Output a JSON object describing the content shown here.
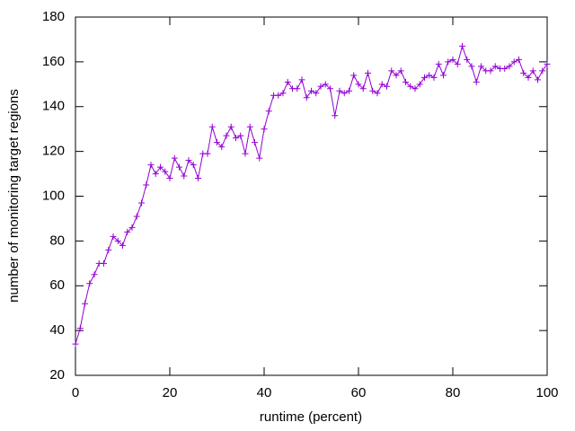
{
  "chart_data": {
    "type": "line",
    "xlabel": "runtime (percent)",
    "ylabel": "number of monitoring target regions",
    "x": [
      0,
      1,
      2,
      3,
      4,
      5,
      6,
      7,
      8,
      9,
      10,
      11,
      12,
      13,
      14,
      15,
      16,
      17,
      18,
      19,
      20,
      21,
      22,
      23,
      24,
      25,
      26,
      27,
      28,
      29,
      30,
      31,
      32,
      33,
      34,
      35,
      36,
      37,
      38,
      39,
      40,
      41,
      42,
      43,
      44,
      45,
      46,
      47,
      48,
      49,
      50,
      51,
      52,
      53,
      54,
      55,
      56,
      57,
      58,
      59,
      60,
      61,
      62,
      63,
      64,
      65,
      66,
      67,
      68,
      69,
      70,
      71,
      72,
      73,
      74,
      75,
      76,
      77,
      78,
      79,
      80,
      81,
      82,
      83,
      84,
      85,
      86,
      87,
      88,
      89,
      90,
      91,
      92,
      93,
      94,
      95,
      96,
      97,
      98,
      99,
      100
    ],
    "series": [
      {
        "color": "#9400d3",
        "values": [
          34,
          41,
          52,
          61,
          65,
          70,
          70,
          76,
          82,
          80,
          78,
          84,
          86,
          91,
          97,
          105,
          114,
          110,
          113,
          111,
          108,
          117,
          113,
          109,
          116,
          114,
          108,
          119,
          119,
          131,
          124,
          122,
          127,
          131,
          126,
          127,
          119,
          131,
          124,
          117,
          130,
          138,
          145,
          145,
          146,
          151,
          148,
          148,
          152,
          144,
          147,
          146,
          149,
          150,
          148,
          136,
          147,
          146,
          147,
          154,
          150,
          148,
          155,
          147,
          146,
          150,
          149,
          156,
          154,
          156,
          151,
          149,
          148,
          150,
          153,
          154,
          153,
          159,
          154,
          160,
          161,
          159,
          167,
          161,
          158,
          151,
          158,
          156,
          156,
          158,
          157,
          157,
          158,
          160,
          161,
          155,
          153,
          156,
          152,
          156,
          159
        ]
      }
    ],
    "xlim": [
      0,
      100
    ],
    "xticks": [
      0,
      20,
      40,
      60,
      80,
      100
    ],
    "ylim": [
      20,
      180
    ],
    "yticks": [
      20,
      40,
      60,
      80,
      100,
      120,
      140,
      160,
      180
    ]
  }
}
